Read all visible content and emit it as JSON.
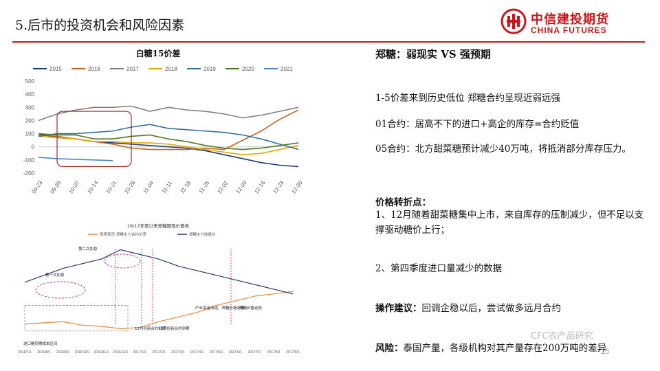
{
  "header": {
    "title": "5.后市的投资机会和风险因素",
    "logo_cn": "中信建投期货",
    "logo_en": "CHINA FUTURES",
    "accent_color": "#c8161d"
  },
  "chart_data": [
    {
      "type": "line",
      "title": "白糖15价差",
      "x_labels": [
        "09-23",
        "09-30",
        "10-07",
        "10-14",
        "10-21",
        "10-28",
        "11-04",
        "11-11",
        "11-18",
        "11-25",
        "12-02",
        "12-09",
        "12-16",
        "12-23",
        "12-30"
      ],
      "ylim": [
        -200,
        500
      ],
      "y_ticks": [
        500,
        400,
        300,
        200,
        100,
        0,
        -100,
        -200
      ],
      "legend_position": "top",
      "series": [
        {
          "name": "2015",
          "color": "#1f3c78",
          "values": [
            100,
            70,
            60,
            40,
            30,
            20,
            10,
            0,
            -10,
            -30,
            -60,
            -90,
            -120,
            -140,
            -150
          ]
        },
        {
          "name": "2016",
          "color": "#c0641e",
          "values": [
            90,
            80,
            60,
            40,
            20,
            -10,
            -20,
            -20,
            -20,
            -10,
            -20,
            50,
            120,
            210,
            280
          ]
        },
        {
          "name": "2017",
          "color": "#7f7f7f",
          "values": [
            200,
            250,
            280,
            300,
            300,
            310,
            270,
            300,
            280,
            270,
            250,
            220,
            240,
            270,
            300
          ]
        },
        {
          "name": "2018",
          "color": "#e0a800",
          "values": [
            80,
            70,
            60,
            40,
            40,
            30,
            30,
            20,
            0,
            -20,
            -40,
            -60,
            -50,
            -20,
            10
          ]
        },
        {
          "name": "2019",
          "color": "#2f6ea5",
          "values": [
            80,
            100,
            100,
            110,
            120,
            150,
            170,
            140,
            130,
            120,
            110,
            90,
            60,
            20,
            -20
          ]
        },
        {
          "name": "2020",
          "color": "#4e7a1e",
          "values": [
            100,
            90,
            90,
            60,
            60,
            80,
            90,
            60,
            40,
            10,
            -10,
            -20,
            -10,
            10,
            30
          ]
        },
        {
          "name": "2021",
          "color": "#4a86c8",
          "values": [
            -80,
            -90,
            -95,
            -100,
            -105
          ]
        }
      ],
      "highlight_box": {
        "x_from": "09-30",
        "x_to": "10-28",
        "y_from": -150,
        "y_to": 270,
        "color": "#a52323"
      }
    },
    {
      "type": "line",
      "title": "16/17年度以来郑糖期现价差表",
      "x_labels": [
        "2016/7/1",
        "2016/8/1",
        "2016/9/1",
        "2016/10/1",
        "2016/11/1",
        "2016/12/1",
        "2017/1/1",
        "2017/2/1",
        "2017/3/1",
        "2017/4/1",
        "2017/5/1",
        "2017/6/1",
        "2017/7/1",
        "2017/8/1",
        "2017/9/1"
      ],
      "ylim": [
        -1500,
        3000
      ],
      "series": [
        {
          "name": "昆明现货-郑糖主力合约价差",
          "color": "#e8873a",
          "values": [
            -600,
            -550,
            -500,
            -650,
            -700,
            -800,
            -750,
            -500,
            -300,
            -100,
            200,
            400,
            600,
            700,
            800
          ]
        },
        {
          "name": "郑糖主力收盘价",
          "color": "#1f3a6b",
          "values": [
            1200,
            1500,
            1800,
            2000,
            2200,
            2600,
            2400,
            2200,
            1900,
            1700,
            1500,
            1300,
            1100,
            900,
            700
          ]
        }
      ],
      "annotations": [
        "第一次加息",
        "第二次加息",
        "进口糖同期成本区间",
        "12月份新合约到期",
        "12月份新合约到期",
        "产业资金出逃，郑糖价格走低",
        "郑糖价格走低"
      ]
    }
  ],
  "right": {
    "heading": "郑糖：弱现实 VS 强预期",
    "para1": "1-5价差来到历史低位 郑糖合约呈现近弱远强",
    "para2": "01合约：居高不下的进口+高企的库存=合约贬值",
    "para3": "05合约：北方甜菜糖预计减少40万吨，将抵消部分库存压力。",
    "turning_label": "价格转折点：",
    "turning1": "1、12月随着甜菜糖集中上市，来自库存的压制减少，但不足以支撑驱动糖价上行；",
    "turning2": "2、第四季度进口量减少的数据",
    "op_label": "操作建议：",
    "op_text": "回调企稳以后，尝试做多远月合约",
    "risk_label": "风险：",
    "risk_text": "泰国产量，各级机构对其产量存在200万吨的差异"
  },
  "footer": {
    "watermark": "CFC农产品研究",
    "page": "15"
  }
}
